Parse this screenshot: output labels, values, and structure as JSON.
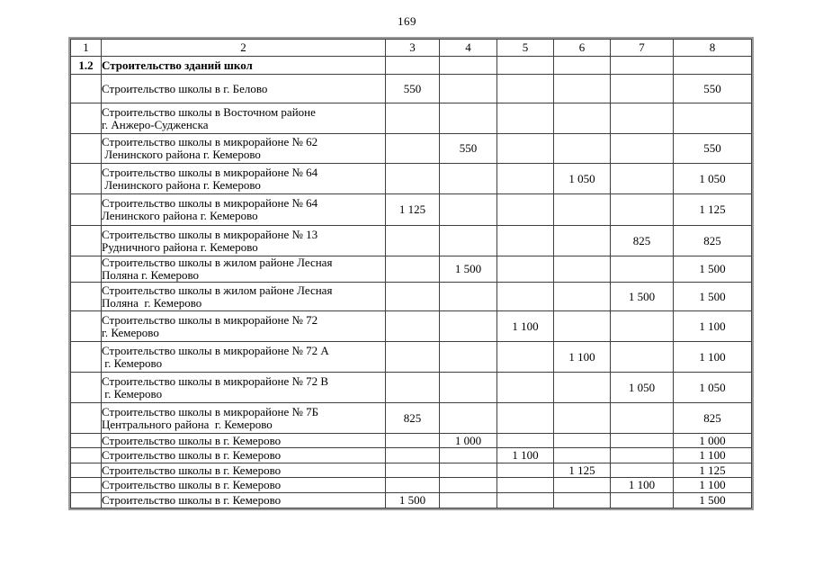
{
  "page_number": "169",
  "table": {
    "column_headers": [
      "1",
      "2",
      "3",
      "4",
      "5",
      "6",
      "7",
      "8"
    ],
    "rows": [
      {
        "h": 20,
        "bold": true,
        "cells": [
          "1.2",
          "Строительство зданий школ",
          "",
          "",
          "",
          "",
          "",
          ""
        ]
      },
      {
        "h": 32,
        "bold": false,
        "cells": [
          "",
          "Строительство школы в г. Белово",
          "550",
          "",
          "",
          "",
          "",
          "550"
        ]
      },
      {
        "h": 34,
        "bold": false,
        "cells": [
          "",
          "Строительство школы в Восточном районе\nг. Анжеро-Судженска",
          "",
          "",
          "",
          "",
          "",
          ""
        ]
      },
      {
        "h": 33,
        "bold": false,
        "cells": [
          "",
          "Строительство школы в микрорайоне № 62\n Ленинского района г. Кемерово",
          "",
          "550",
          "",
          "",
          "",
          "550"
        ]
      },
      {
        "h": 34,
        "bold": false,
        "cells": [
          "",
          "Строительство школы в микрорайоне № 64\n Ленинского района г. Кемерово",
          "",
          "",
          "",
          "1 050",
          "",
          "1 050"
        ]
      },
      {
        "h": 35,
        "bold": false,
        "cells": [
          "",
          "Строительство школы в микрорайоне № 64\nЛенинского района г. Кемерово",
          "1 125",
          "",
          "",
          "",
          "",
          "1 125"
        ]
      },
      {
        "h": 34,
        "bold": false,
        "cells": [
          "",
          "Строительство школы в микрорайоне № 13\nРудничного района г. Кемерово",
          "",
          "",
          "",
          "",
          "825",
          "825"
        ]
      },
      {
        "h": 28,
        "bold": false,
        "cells": [
          "",
          "Строительство школы в жилом районе Лесная\nПоляна г. Кемерово",
          "",
          "1 500",
          "",
          "",
          "",
          "1 500"
        ]
      },
      {
        "h": 32,
        "bold": false,
        "cells": [
          "",
          "Строительство школы в жилом районе Лесная\nПоляна  г. Кемерово",
          "",
          "",
          "",
          "",
          "1 500",
          "1 500"
        ]
      },
      {
        "h": 34,
        "bold": false,
        "cells": [
          "",
          "Строительство школы в микрорайоне № 72\nг. Кемерово",
          "",
          "",
          "1 100",
          "",
          "",
          "1 100"
        ]
      },
      {
        "h": 34,
        "bold": false,
        "cells": [
          "",
          "Строительство школы в микрорайоне № 72 А\n г. Кемерово",
          "",
          "",
          "",
          "1 100",
          "",
          "1 100"
        ]
      },
      {
        "h": 34,
        "bold": false,
        "cells": [
          "",
          "Строительство школы в микрорайоне № 72 В\n г. Кемерово",
          "",
          "",
          "",
          "",
          "1 050",
          "1 050"
        ]
      },
      {
        "h": 34,
        "bold": false,
        "cells": [
          "",
          "Строительство школы в микрорайоне № 7Б\nЦентрального района  г. Кемерово",
          "825",
          "",
          "",
          "",
          "",
          "825"
        ]
      },
      {
        "h": 16,
        "bold": false,
        "cells": [
          "",
          "Строительство школы в г. Кемерово",
          "",
          "1 000",
          "",
          "",
          "",
          "1 000"
        ]
      },
      {
        "h": 17,
        "bold": false,
        "cells": [
          "",
          "Строительство школы в г. Кемерово",
          "",
          "",
          "1 100",
          "",
          "",
          "1 100"
        ]
      },
      {
        "h": 16,
        "bold": false,
        "cells": [
          "",
          "Строительство школы в г. Кемерово",
          "",
          "",
          "",
          "1 125",
          "",
          "1 125"
        ]
      },
      {
        "h": 17,
        "bold": false,
        "cells": [
          "",
          "Строительство школы в г. Кемерово",
          "",
          "",
          "",
          "",
          "1 100",
          "1 100"
        ]
      },
      {
        "h": 17,
        "bold": false,
        "cells": [
          "",
          "Строительство школы в г. Кемерово",
          "1 500",
          "",
          "",
          "",
          "",
          "1 500"
        ]
      }
    ]
  }
}
